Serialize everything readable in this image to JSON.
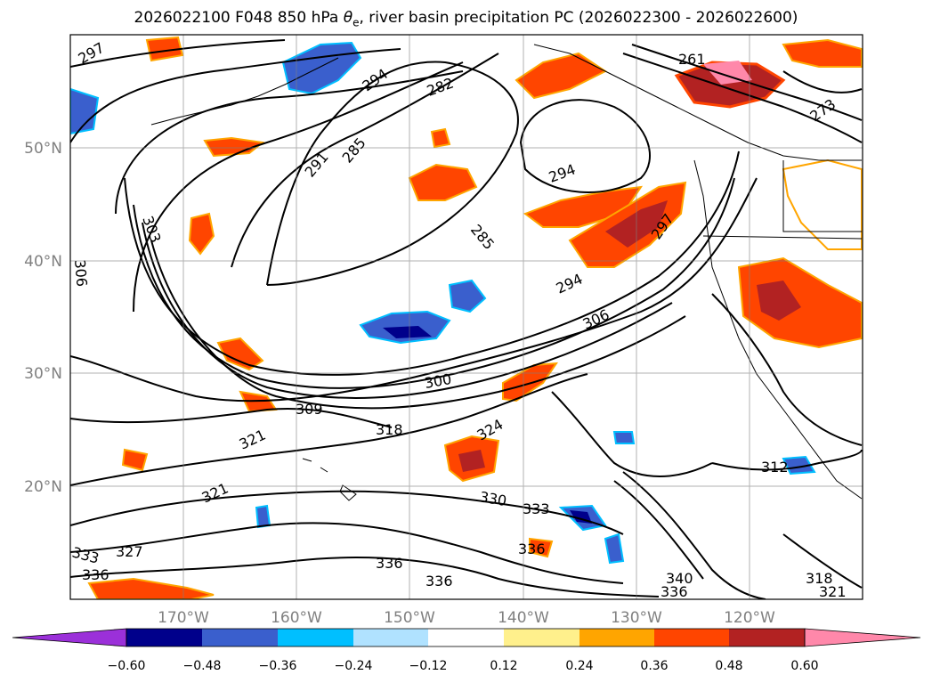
{
  "title": {
    "prefix": "2026022100 F048 850 hPa ",
    "symbol": "θ",
    "subscript": "e",
    "suffix": ", river basin precipitation PC (2026022300 - 2026022600)"
  },
  "map": {
    "lon_ticks": [
      "170°W",
      "160°W",
      "150°W",
      "140°W",
      "130°W",
      "120°W"
    ],
    "lat_ticks": [
      "50°N",
      "40°N",
      "30°N",
      "20°N"
    ],
    "lon_range": [
      -180,
      -110
    ],
    "lat_range": [
      10,
      60
    ]
  },
  "contour_labels": [
    "297",
    "294",
    "282",
    "261",
    "273",
    "291",
    "285",
    "294",
    "303",
    "306",
    "285",
    "297",
    "294",
    "306",
    "300",
    "309",
    "318",
    "324",
    "321",
    "321",
    "312",
    "330",
    "333",
    "327",
    "333",
    "336",
    "336",
    "336",
    "336",
    "336",
    "340",
    "318",
    "321"
  ],
  "colorbar": {
    "ticks": [
      "−0.60",
      "−0.48",
      "−0.36",
      "−0.24",
      "−0.12",
      "0.12",
      "0.24",
      "0.36",
      "0.48",
      "0.60"
    ],
    "colors": [
      "#9b30d9",
      "#00008b",
      "#3a5fcd",
      "#00bfff",
      "#b0e2ff",
      "#ffffff",
      "#fff08c",
      "#ffa500",
      "#ff4500",
      "#b22222",
      "#ff88aa",
      "#ff88aa"
    ]
  }
}
